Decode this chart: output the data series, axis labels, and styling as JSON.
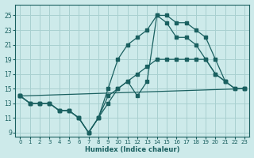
{
  "background_color": "#cdeaea",
  "grid_color": "#a8d0d0",
  "line_color": "#1a6060",
  "xlabel": "Humidex (Indice chaleur)",
  "xlim": [
    -0.5,
    23.5
  ],
  "ylim": [
    8.5,
    26.5
  ],
  "xticks": [
    0,
    1,
    2,
    3,
    4,
    5,
    6,
    7,
    8,
    9,
    10,
    11,
    12,
    13,
    14,
    15,
    16,
    17,
    18,
    19,
    20,
    21,
    22,
    23
  ],
  "yticks": [
    9,
    11,
    13,
    15,
    17,
    19,
    21,
    23,
    25
  ],
  "line1_x": [
    0,
    23
  ],
  "line1_y": [
    14,
    15
  ],
  "line2_x": [
    0,
    1,
    2,
    3,
    4,
    5,
    6,
    7,
    8,
    9,
    10,
    11,
    12,
    13,
    14,
    15,
    16,
    17,
    18,
    19,
    20,
    21,
    22,
    23
  ],
  "line2_y": [
    14,
    13,
    13,
    13,
    12,
    12,
    11,
    9,
    11,
    14,
    15,
    16,
    17,
    18,
    19,
    19,
    19,
    19,
    19,
    19,
    17,
    16,
    15,
    15
  ],
  "line3_x": [
    0,
    1,
    2,
    3,
    4,
    5,
    6,
    7,
    8,
    9,
    10,
    11,
    12,
    13,
    14,
    15,
    16,
    17,
    18,
    19,
    20,
    21
  ],
  "line3_y": [
    14,
    13,
    13,
    13,
    12,
    12,
    11,
    9,
    11,
    15,
    19,
    21,
    22,
    23,
    25,
    25,
    24,
    24,
    23,
    22,
    19,
    16
  ],
  "line4_x": [
    0,
    1,
    2,
    3,
    4,
    5,
    6,
    7,
    8,
    9,
    10,
    11,
    12,
    13,
    14,
    15,
    16,
    17,
    18,
    19,
    20,
    21,
    22,
    23
  ],
  "line4_y": [
    14,
    13,
    13,
    13,
    12,
    12,
    11,
    9,
    11,
    13,
    15,
    16,
    14,
    16,
    25,
    24,
    22,
    22,
    21,
    19,
    17,
    16,
    15,
    15
  ]
}
